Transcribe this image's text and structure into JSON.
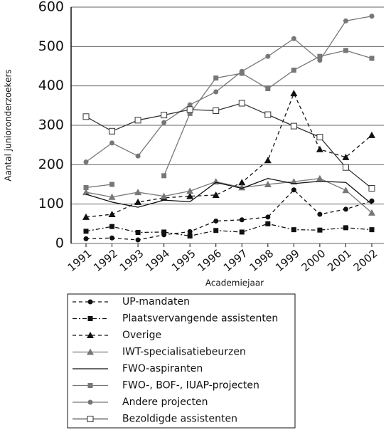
{
  "chart_data": {
    "type": "line",
    "x_label": "Academiejaar",
    "y_label": "Aantal junioronderzoekers",
    "categories": [
      "1991",
      "1992",
      "1993",
      "1994",
      "1995",
      "1996",
      "1997",
      "1998",
      "1999",
      "2000",
      "2001",
      "2002"
    ],
    "ylim": [
      0,
      600
    ],
    "yticks": [
      0,
      100,
      200,
      300,
      400,
      500,
      600
    ],
    "grid": true,
    "series": [
      {
        "name": "UP-mandaten",
        "color": "#111111",
        "dash": "5 4",
        "marker": "circle-filled",
        "values": [
          12,
          14,
          9,
          22,
          30,
          57,
          60,
          67,
          136,
          74,
          87,
          108
        ]
      },
      {
        "name": "Plaatsvervangende assistenten",
        "color": "#111111",
        "dash": "6 3 2 3",
        "marker": "square-filled",
        "values": [
          31,
          43,
          28,
          29,
          19,
          33,
          29,
          50,
          35,
          34,
          40,
          35
        ]
      },
      {
        "name": "Overige",
        "color": "#111111",
        "dash": "5 4",
        "marker": "triangle-filled",
        "values": [
          67,
          74,
          105,
          116,
          120,
          123,
          155,
          211,
          381,
          239,
          219,
          275
        ]
      },
      {
        "name": "IWT-specialisatiebeurzen",
        "color": "#777777",
        "dash": "",
        "marker": "triangle-filled",
        "values": [
          130,
          118,
          130,
          120,
          133,
          157,
          142,
          150,
          157,
          165,
          135,
          78
        ]
      },
      {
        "name": "FWO-aspiranten",
        "color": "#111111",
        "dash": "",
        "marker": "none",
        "values": [
          125,
          105,
          92,
          110,
          106,
          155,
          140,
          165,
          152,
          158,
          155,
          100
        ]
      },
      {
        "name": "FWO-, BOF-, IUAP-projecten",
        "color": "#777777",
        "dash": "",
        "marker": "square-filled",
        "values": [
          142,
          150,
          null,
          172,
          330,
          420,
          432,
          393,
          440,
          475,
          490,
          470
        ]
      },
      {
        "name": "Andere projecten",
        "color": "#777777",
        "dash": "",
        "marker": "circle-filled",
        "values": [
          207,
          255,
          222,
          307,
          352,
          385,
          437,
          475,
          520,
          465,
          565,
          577
        ]
      },
      {
        "name": "Bezoldigde assistenten",
        "color": "#333333",
        "dash": "",
        "marker": "square-open",
        "values": [
          322,
          285,
          313,
          326,
          340,
          337,
          356,
          327,
          298,
          270,
          193,
          140
        ]
      }
    ]
  }
}
